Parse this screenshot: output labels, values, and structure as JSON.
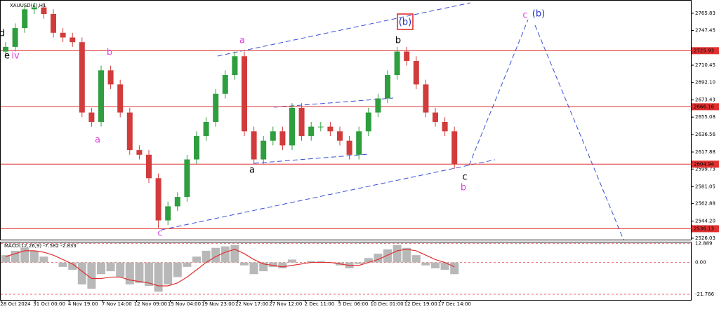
{
  "chart_data": {
    "type": "candlestick",
    "title": "XAUUSD(£),H1",
    "up_color": "#2e9e3e",
    "down_color": "#d23b3b",
    "open": [
      2725,
      2730,
      2750,
      2770,
      2772,
      2765,
      2745,
      2740,
      2735,
      2660,
      2650,
      2705,
      2690,
      2660,
      2620,
      2615,
      2590,
      2545,
      2560,
      2570,
      2610,
      2635,
      2650,
      2680,
      2700,
      2720,
      2640,
      2610,
      2630,
      2640,
      2625,
      2665,
      2635,
      2645,
      2645,
      2640,
      2630,
      2615,
      2640,
      2660,
      2675,
      2700,
      2725,
      2715,
      2690,
      2660,
      2650,
      2640
    ],
    "high": [
      2735,
      2755,
      2775,
      2777,
      2777,
      2770,
      2750,
      2745,
      2740,
      2665,
      2710,
      2710,
      2695,
      2665,
      2625,
      2620,
      2595,
      2565,
      2575,
      2615,
      2640,
      2655,
      2685,
      2705,
      2725,
      2725,
      2645,
      2635,
      2645,
      2645,
      2670,
      2670,
      2650,
      2650,
      2650,
      2645,
      2635,
      2645,
      2665,
      2680,
      2705,
      2730,
      2730,
      2720,
      2695,
      2665,
      2655,
      2645
    ],
    "low": [
      2720,
      2725,
      2745,
      2765,
      2760,
      2740,
      2735,
      2730,
      2655,
      2645,
      2645,
      2685,
      2655,
      2615,
      2610,
      2585,
      2537,
      2540,
      2555,
      2565,
      2605,
      2630,
      2645,
      2675,
      2695,
      2635,
      2605,
      2605,
      2625,
      2620,
      2620,
      2630,
      2630,
      2640,
      2635,
      2625,
      2610,
      2610,
      2635,
      2655,
      2670,
      2695,
      2710,
      2685,
      2655,
      2645,
      2635,
      2600
    ],
    "close": [
      2730,
      2750,
      2770,
      2772,
      2765,
      2745,
      2740,
      2735,
      2660,
      2650,
      2705,
      2690,
      2660,
      2620,
      2615,
      2590,
      2545,
      2560,
      2570,
      2610,
      2635,
      2650,
      2680,
      2700,
      2720,
      2640,
      2610,
      2630,
      2640,
      2625,
      2665,
      2635,
      2645,
      2645,
      2640,
      2630,
      2615,
      2640,
      2660,
      2675,
      2700,
      2725,
      2715,
      2690,
      2660,
      2650,
      2640,
      2605
    ],
    "ylim": [
      2524.5,
      2779.2
    ],
    "yticks": [
      2765.83,
      2747.45,
      2710.45,
      {
        "value": 2692.1,
        "label": "2692.10"
      },
      2673.43,
      2655.08,
      2636.56,
      2617.88,
      2599.73,
      2581.05,
      2562.88,
      {
        "value": 2544.2,
        "label": "2544.20"
      },
      2526.03
    ],
    "levels": [
      2725.93,
      2666.16,
      2604.94,
      2536.13
    ],
    "level_color": "#e03030",
    "xticks": [
      "28 Oct 2024",
      "31 Oct 00:00",
      "4 Nov 19:00",
      "7 Nov 14:00",
      "12 Nov 09:00",
      "15 Nov 04:00",
      "19 Nov 23:00",
      "22 Nov 17:00",
      "27 Nov 12:00",
      "2 Dec 11:00",
      "5 Dec 06:00",
      "10 Dec 01:00",
      "12 Dec 19:00",
      "17 Dec 14:00"
    ],
    "annotations": [
      "d",
      "e",
      "iv",
      "b",
      "a",
      "c",
      "a",
      "a",
      "b",
      "(b)",
      "c",
      "b",
      "c",
      "(b)"
    ],
    "macd": {
      "label": "MACD(12,26,9) -7.582 -2.833",
      "ylim": [
        -25.6,
        13.7
      ],
      "yticks": [
        12.889,
        {
          "value": 0,
          "label": "0.00"
        },
        -21.766
      ],
      "series": [
        {
          "name": "MACD",
          "color": "#b8b8b8",
          "values": [
            5,
            8,
            10,
            8,
            4,
            0,
            -3,
            -5,
            -15,
            -18,
            -8,
            -6,
            -10,
            -15,
            -14,
            -16,
            -20,
            -15,
            -10,
            -3,
            4,
            8,
            10,
            11,
            12,
            -2,
            -8,
            -6,
            -3,
            -4,
            2,
            0,
            1,
            1,
            0,
            -2,
            -4,
            -1,
            3,
            6,
            9,
            12,
            10,
            5,
            -2,
            -4,
            -5,
            -8
          ]
        },
        {
          "name": "Signal",
          "color": "#e03030",
          "values": [
            4,
            6,
            8,
            8,
            7,
            5,
            2,
            -1,
            -6,
            -11,
            -11,
            -10,
            -10,
            -12,
            -13,
            -14,
            -16,
            -16,
            -14,
            -10,
            -5,
            0,
            4,
            7,
            9,
            6,
            2,
            -1,
            -2,
            -3,
            -2,
            -1,
            0,
            0,
            0,
            -1,
            -2,
            -2,
            0,
            2,
            5,
            8,
            9,
            8,
            5,
            2,
            0,
            -3
          ]
        }
      ]
    }
  }
}
